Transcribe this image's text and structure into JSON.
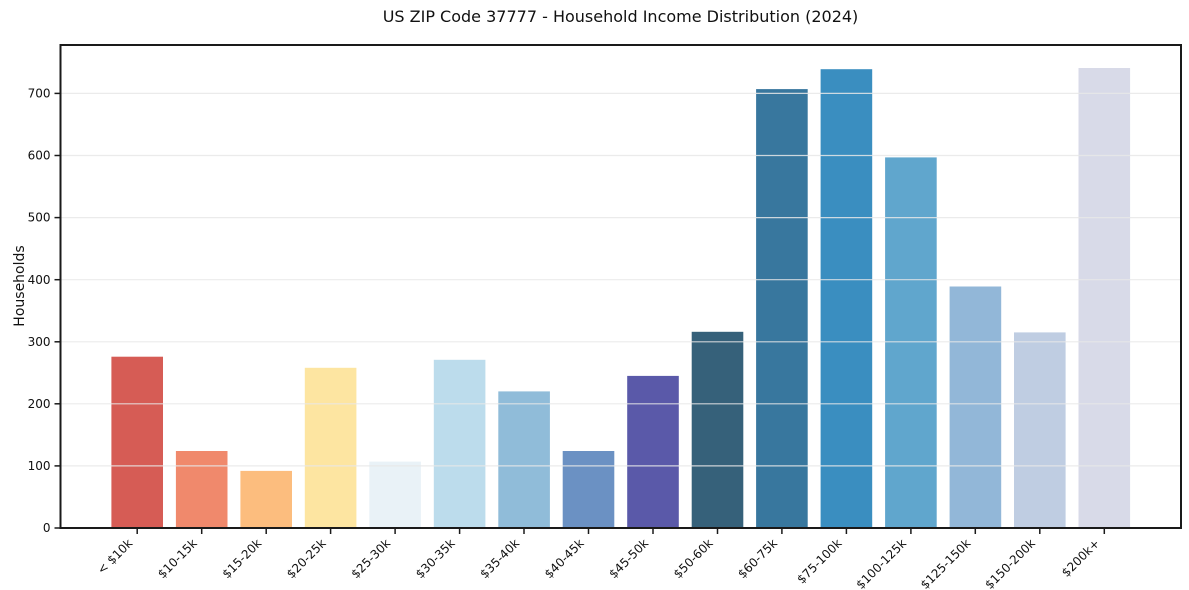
{
  "chart_data": {
    "type": "bar",
    "title": "US ZIP Code 37777 - Household Income Distribution (2024)",
    "xlabel": "",
    "ylabel": "Households",
    "categories": [
      "< $10k",
      "$10-15k",
      "$15-20k",
      "$20-25k",
      "$25-30k",
      "$30-35k",
      "$35-40k",
      "$40-45k",
      "$45-50k",
      "$50-60k",
      "$60-75k",
      "$75-100k",
      "$100-125k",
      "$125-150k",
      "$150-200k",
      "$200k+"
    ],
    "values": [
      276,
      124,
      92,
      258,
      107,
      271,
      220,
      124,
      245,
      316,
      707,
      739,
      597,
      389,
      315,
      741
    ],
    "bar_colors": [
      "#d65c55",
      "#f0896c",
      "#fcbd7e",
      "#fde5a1",
      "#e9f2f7",
      "#bcdcec",
      "#90bcd9",
      "#6b91c3",
      "#5a59a9",
      "#36617a",
      "#38779e",
      "#3a8ec0",
      "#60a6cd",
      "#92b7d8",
      "#bfcde2",
      "#d8dae8"
    ],
    "yticks": [
      0,
      100,
      200,
      300,
      400,
      500,
      600,
      700
    ],
    "ylim": [
      0,
      778
    ],
    "grid": "horizontal",
    "legend": "none",
    "background_color": "#ffffff",
    "grid_color": "#e7e7e7",
    "spine_color": "#1a1a1a",
    "tick_label_color": "#111111"
  }
}
